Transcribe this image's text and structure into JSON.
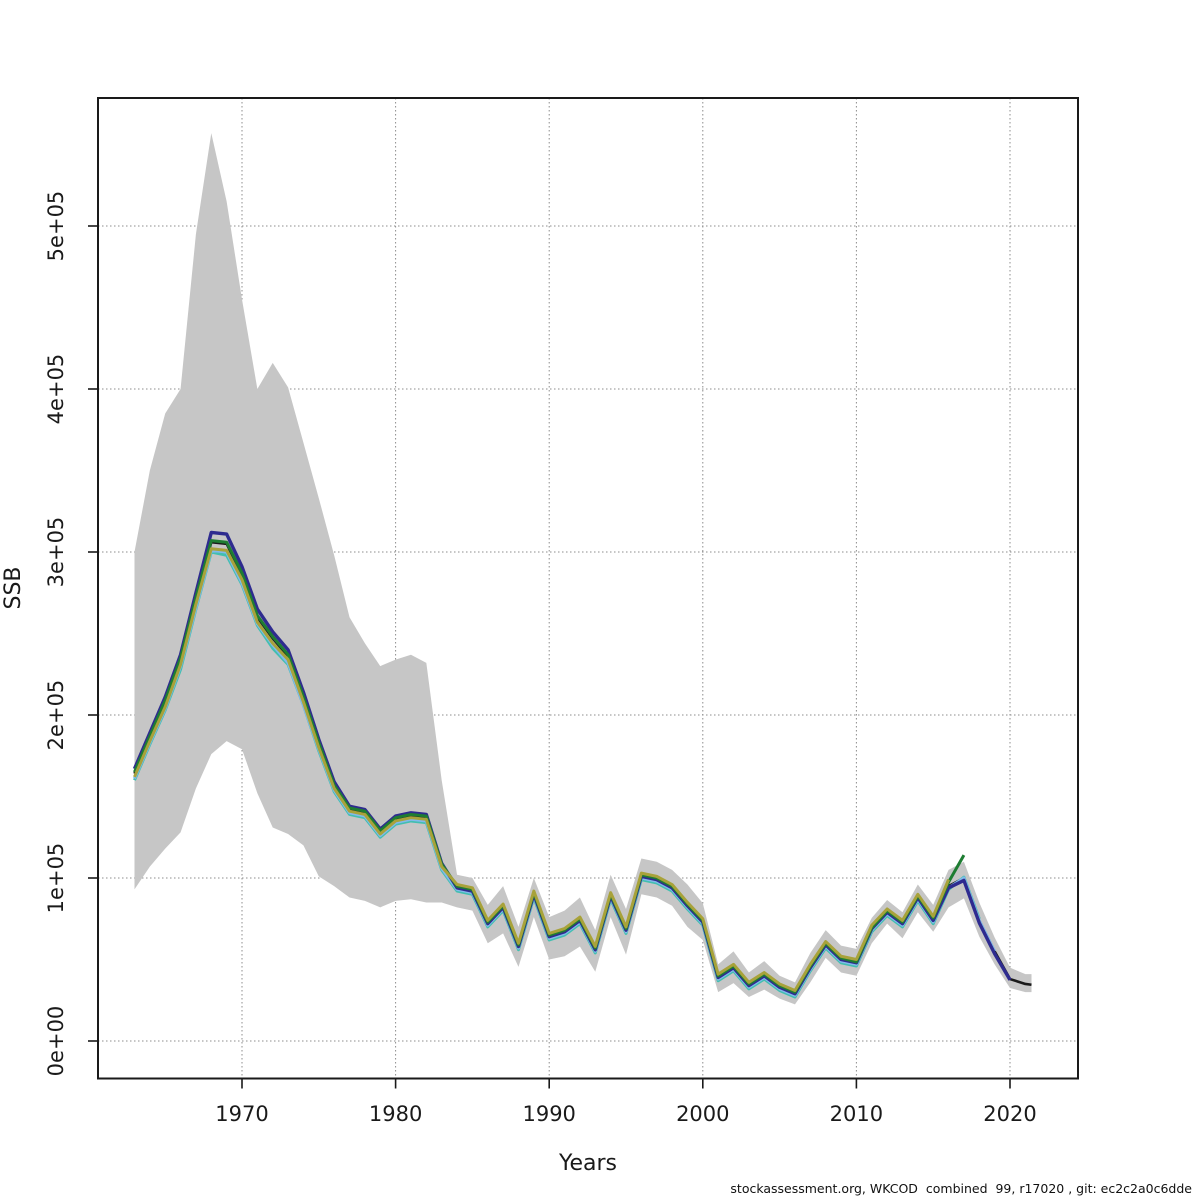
{
  "page": {
    "background": "#ffffff"
  },
  "footer": {
    "credit": "stockassessment.org, WKCOD  combined  99, r17020 , git: ec2c2a0c6dde"
  },
  "chart_data": {
    "type": "line",
    "title": "",
    "xlabel": "Years",
    "ylabel": "SSB",
    "grid": true,
    "legend": null,
    "value_unit": "1e+05",
    "x_ticks": [
      1970,
      1980,
      1990,
      2000,
      2010,
      2020
    ],
    "y_ticks": [
      {
        "value": 0,
        "label": "0e+00"
      },
      {
        "value": 1,
        "label": "1e+05"
      },
      {
        "value": 2,
        "label": "2e+05"
      },
      {
        "value": 3,
        "label": "3e+05"
      },
      {
        "value": 4,
        "label": "4e+05"
      },
      {
        "value": 5,
        "label": "5e+05"
      }
    ],
    "xlim": [
      1960.6,
      2024.6
    ],
    "ylim_units": [
      -0.23,
      5.79
    ],
    "colors": {
      "axis": "#1a1a1a",
      "grid": "#8c8c8c",
      "band": "#c6c6c6"
    },
    "band": {
      "name": "confidence-band",
      "start_year": 1963,
      "tail_year": 2021.4,
      "tail_lower": 0.3,
      "tail_upper": 0.41,
      "lower": [
        0.93,
        1.07,
        1.18,
        1.28,
        1.55,
        1.76,
        1.84,
        1.79,
        1.52,
        1.31,
        1.27,
        1.2,
        1.01,
        0.95,
        0.88,
        0.86,
        0.82,
        0.86,
        0.87,
        0.85,
        0.85,
        0.82,
        0.8,
        0.6,
        0.66,
        0.455,
        0.76,
        0.5,
        0.52,
        0.58,
        0.425,
        0.76,
        0.53,
        0.9,
        0.88,
        0.83,
        0.7,
        0.62,
        0.3,
        0.355,
        0.27,
        0.315,
        0.26,
        0.225,
        0.36,
        0.51,
        0.42,
        0.4,
        0.6,
        0.72,
        0.63,
        0.79,
        0.67,
        0.82,
        0.875,
        0.64,
        0.47,
        0.325,
        0.3
      ],
      "upper": [
        3.0,
        3.5,
        3.85,
        4.0,
        4.95,
        5.57,
        5.15,
        4.55,
        4.0,
        4.16,
        4.01,
        3.67,
        3.33,
        2.98,
        2.6,
        2.44,
        2.3,
        2.34,
        2.37,
        2.32,
        1.6,
        1.02,
        1.0,
        0.835,
        0.95,
        0.7,
        1.0,
        0.76,
        0.8,
        0.88,
        0.68,
        1.02,
        0.81,
        1.12,
        1.1,
        1.05,
        0.96,
        0.845,
        0.47,
        0.55,
        0.42,
        0.49,
        0.4,
        0.36,
        0.54,
        0.68,
        0.585,
        0.565,
        0.755,
        0.865,
        0.79,
        0.96,
        0.835,
        1.05,
        1.1,
        0.85,
        0.635,
        0.45,
        0.41
      ]
    },
    "series": [
      {
        "name": "current-assessment-black",
        "color": "#1a1a1a",
        "width": 2.6,
        "start_year": 1963,
        "tail_year": 2021.4,
        "tail_value": 0.345,
        "values": [
          1.64,
          1.86,
          2.07,
          2.33,
          2.7,
          3.06,
          3.05,
          2.86,
          2.6,
          2.47,
          2.36,
          2.1,
          1.82,
          1.56,
          1.42,
          1.4,
          1.28,
          1.36,
          1.38,
          1.37,
          1.08,
          0.94,
          0.92,
          0.72,
          0.82,
          0.58,
          0.9,
          0.64,
          0.67,
          0.74,
          0.56,
          0.89,
          0.68,
          1.01,
          0.99,
          0.94,
          0.83,
          0.73,
          0.39,
          0.45,
          0.34,
          0.4,
          0.33,
          0.29,
          0.45,
          0.59,
          0.5,
          0.48,
          0.69,
          0.79,
          0.72,
          0.88,
          0.74,
          0.95,
          1.0,
          0.74,
          0.55,
          0.38,
          0.35
        ]
      },
      {
        "name": "retro-peel-teal",
        "color": "#42bfb0",
        "width": 3,
        "start_year": 1963,
        "values": [
          1.6,
          1.82,
          2.03,
          2.28,
          2.65,
          3.0,
          2.98,
          2.8,
          2.55,
          2.41,
          2.31,
          2.06,
          1.78,
          1.53,
          1.39,
          1.37,
          1.25,
          1.33,
          1.35,
          1.34,
          1.05,
          0.92,
          0.9,
          0.7,
          0.8,
          0.56,
          0.88,
          0.62,
          0.65,
          0.72,
          0.54,
          0.87,
          0.66,
          0.99,
          0.97,
          0.92,
          0.81,
          0.71,
          0.37,
          0.43,
          0.32,
          0.38,
          0.31,
          0.27,
          0.43,
          0.57,
          0.48,
          0.46,
          0.67,
          0.77,
          0.7,
          0.86,
          0.72,
          0.93,
          1.005,
          0.75
        ]
      },
      {
        "name": "retro-peel-lightblue",
        "color": "#82b9eb",
        "width": 3,
        "start_year": 1963,
        "values": [
          1.61,
          1.83,
          2.04,
          2.3,
          2.66,
          3.01,
          3.0,
          2.81,
          2.56,
          2.43,
          2.32,
          2.06,
          1.79,
          1.54,
          1.4,
          1.38,
          1.26,
          1.34,
          1.36,
          1.35,
          1.06,
          0.93,
          0.91,
          0.71,
          0.81,
          0.57,
          0.89,
          0.63,
          0.66,
          0.73,
          0.55,
          0.88,
          0.67,
          1.0,
          0.98,
          0.93,
          0.82,
          0.72,
          0.38,
          0.44,
          0.33,
          0.39,
          0.32,
          0.28,
          0.44,
          0.58,
          0.49,
          0.47,
          0.68,
          0.78,
          0.71,
          0.87,
          0.73,
          0.94,
          1.0,
          0.74,
          0.55
        ]
      },
      {
        "name": "retro-peel-navy",
        "color": "#2e2b8f",
        "width": 3.4,
        "start_year": 1963,
        "values": [
          1.67,
          1.89,
          2.11,
          2.37,
          2.75,
          3.12,
          3.11,
          2.91,
          2.65,
          2.51,
          2.4,
          2.14,
          1.85,
          1.59,
          1.44,
          1.42,
          1.3,
          1.38,
          1.4,
          1.39,
          1.09,
          0.94,
          0.92,
          0.72,
          0.82,
          0.58,
          0.9,
          0.64,
          0.67,
          0.74,
          0.56,
          0.89,
          0.68,
          1.01,
          0.99,
          0.94,
          0.83,
          0.73,
          0.39,
          0.45,
          0.34,
          0.4,
          0.33,
          0.29,
          0.45,
          0.59,
          0.5,
          0.48,
          0.69,
          0.79,
          0.72,
          0.88,
          0.74,
          0.94,
          0.985,
          0.725,
          0.535,
          0.375
        ]
      },
      {
        "name": "retro-peel-green",
        "color": "#1e7d32",
        "width": 3,
        "start_year": 1963,
        "values": [
          1.65,
          1.87,
          2.09,
          2.35,
          2.72,
          3.07,
          3.06,
          2.87,
          2.61,
          2.48,
          2.37,
          2.11,
          1.83,
          1.57,
          1.43,
          1.41,
          1.29,
          1.37,
          1.39,
          1.38,
          1.085,
          0.95,
          0.93,
          0.73,
          0.83,
          0.59,
          0.91,
          0.65,
          0.68,
          0.75,
          0.57,
          0.9,
          0.69,
          1.02,
          1.0,
          0.95,
          0.84,
          0.74,
          0.4,
          0.46,
          0.35,
          0.41,
          0.34,
          0.3,
          0.46,
          0.6,
          0.51,
          0.485,
          0.695,
          0.8,
          0.73,
          0.89,
          0.755,
          0.975,
          1.14
        ]
      },
      {
        "name": "retro-peel-olive",
        "color": "#a8a23a",
        "width": 3,
        "start_year": 1963,
        "values": [
          1.62,
          1.84,
          2.05,
          2.31,
          2.68,
          3.02,
          3.01,
          2.83,
          2.57,
          2.44,
          2.34,
          2.08,
          1.8,
          1.55,
          1.41,
          1.39,
          1.27,
          1.35,
          1.37,
          1.36,
          1.07,
          0.96,
          0.94,
          0.74,
          0.84,
          0.6,
          0.92,
          0.66,
          0.69,
          0.76,
          0.58,
          0.91,
          0.7,
          1.03,
          1.01,
          0.96,
          0.85,
          0.75,
          0.41,
          0.47,
          0.36,
          0.42,
          0.35,
          0.31,
          0.47,
          0.61,
          0.52,
          0.5,
          0.71,
          0.81,
          0.74,
          0.9,
          0.765,
          0.99
        ]
      }
    ]
  }
}
